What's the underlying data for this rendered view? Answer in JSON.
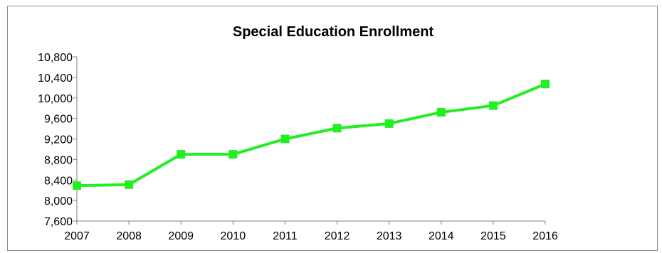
{
  "chart_data": {
    "type": "line",
    "title": "Special Education Enrollment",
    "xlabel": "",
    "ylabel": "",
    "x": [
      "2007",
      "2008",
      "2009",
      "2010",
      "2011",
      "2012",
      "2013",
      "2014",
      "2015",
      "2016"
    ],
    "series": [
      {
        "values": [
          8290,
          8310,
          8900,
          8900,
          9200,
          9410,
          9500,
          9720,
          9850,
          10270
        ],
        "color": "#22ee22"
      }
    ],
    "ylim": [
      7600,
      10800
    ],
    "yticks": [
      7600,
      8000,
      8400,
      8800,
      9200,
      9600,
      10000,
      10400,
      10800
    ],
    "ytick_labels": [
      "7,600",
      "8,000",
      "8,400",
      "8,800",
      "9,200",
      "9,600",
      "10,000",
      "10,400",
      "10,800"
    ],
    "grid": false,
    "legend": "none",
    "marker": "square"
  }
}
